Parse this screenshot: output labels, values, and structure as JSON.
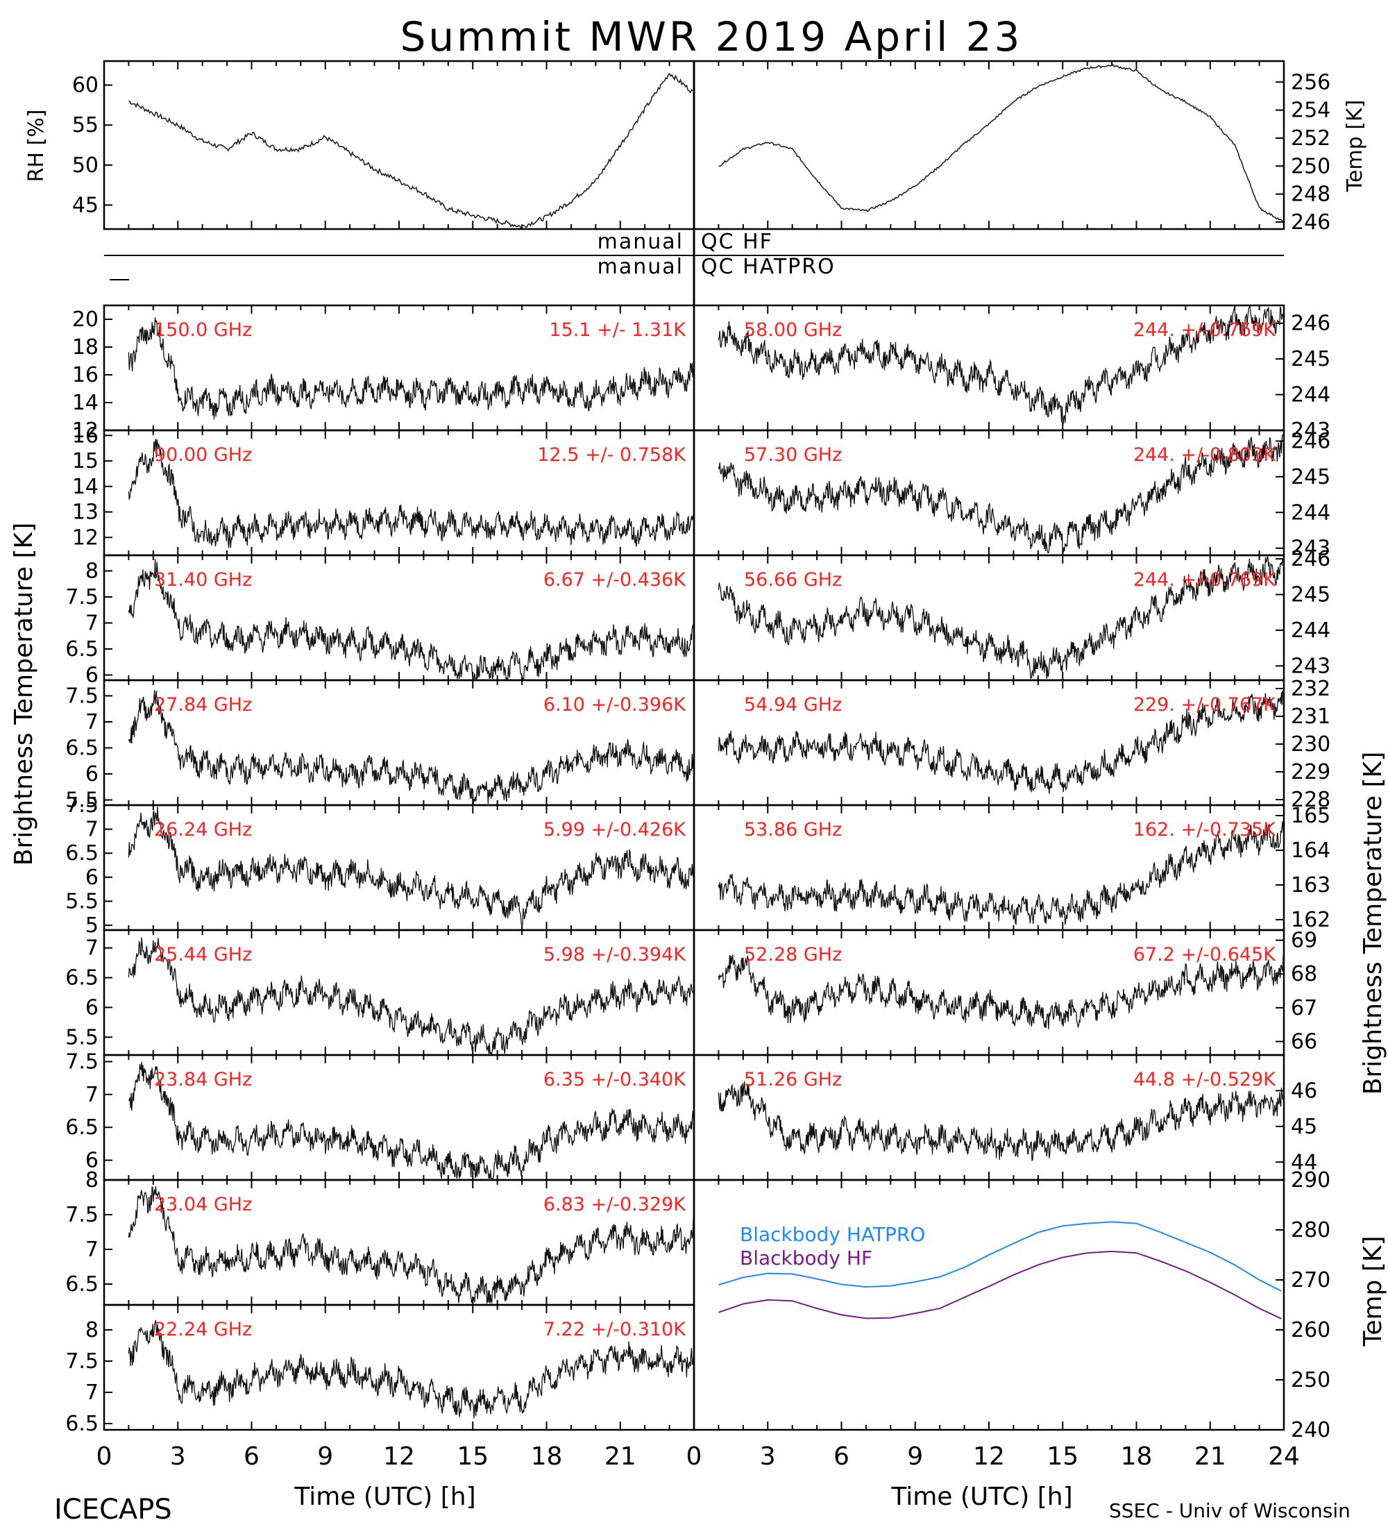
{
  "title": "Summit MWR 2019 April 23",
  "footer": {
    "left": "ICECAPS",
    "right": "SSEC - Univ of Wisconsin"
  },
  "x_axis": {
    "label": "Time (UTC) [h]",
    "ticks": [
      "0",
      "3",
      "6",
      "9",
      "12",
      "15",
      "18",
      "21",
      "24"
    ]
  },
  "left_axis_label": "Brightness Temperature [K]",
  "right_axis_label": "Brightness Temperature [K]",
  "qc_labels": {
    "left": "manual",
    "hf": "QC HF",
    "hatpro": "QC HATPRO"
  },
  "colors": {
    "freq_text": "#ff2020",
    "trace": "#111111",
    "bb_hatpro": "#1e88ff",
    "bb_hf": "#7a1a8a"
  },
  "chart_data": [
    {
      "type": "line",
      "id": "rh",
      "ylabel": "RH [%]",
      "ylim": [
        42,
        63
      ],
      "yticks": [
        45,
        50,
        55,
        60
      ],
      "x": [
        1,
        2,
        3,
        4,
        5,
        6,
        7,
        8,
        9,
        10,
        11,
        12,
        13,
        14,
        15,
        16,
        17,
        18,
        19,
        20,
        21,
        22,
        23,
        24
      ],
      "values": [
        58,
        56.5,
        55,
        53,
        52,
        54,
        52,
        52,
        53.5,
        51.5,
        49.5,
        48,
        46.5,
        44.5,
        43.7,
        43,
        42.3,
        43.5,
        45.5,
        48,
        52.5,
        57,
        61.5,
        59
      ]
    },
    {
      "type": "line",
      "id": "temp",
      "ylabel": "Temp [K]",
      "ylim": [
        245.5,
        257.5
      ],
      "yticks": [
        246,
        248,
        250,
        252,
        254,
        256
      ],
      "x": [
        1,
        2,
        3,
        4,
        5,
        6,
        7,
        8,
        9,
        10,
        11,
        12,
        13,
        14,
        15,
        16,
        17,
        18,
        19,
        20,
        21,
        22,
        23,
        24
      ],
      "values": [
        250,
        251.2,
        251.7,
        251.2,
        249,
        247,
        246.8,
        247.5,
        248.6,
        250,
        251.6,
        253,
        254.6,
        255.7,
        256.4,
        257,
        257.2,
        256.8,
        255.4,
        254.6,
        253.5,
        251.5,
        247,
        246
      ]
    },
    {
      "type": "scatter",
      "side": "left",
      "freq": "150.0 GHz",
      "stat": "15.1 +/-  1.31K",
      "ylim": [
        12,
        21
      ],
      "yticks": [
        12,
        14,
        16,
        18,
        20
      ],
      "x": [
        1,
        1.5,
        2,
        2.5,
        3,
        4,
        5,
        6,
        7,
        8,
        9,
        10,
        11,
        12,
        13,
        14,
        15,
        16,
        17,
        18,
        19,
        20,
        21,
        22,
        23,
        24
      ],
      "values": [
        17,
        18.5,
        19.5,
        18,
        14.5,
        14,
        14,
        14.5,
        15,
        14.5,
        15,
        14.5,
        15,
        15,
        14.5,
        15,
        14.5,
        14.5,
        15,
        15,
        14.5,
        14.5,
        15,
        15.5,
        15.5,
        16
      ]
    },
    {
      "type": "scatter",
      "side": "left",
      "freq": "90.00 GHz",
      "stat": "12.5 +/- 0.758K",
      "ylim": [
        11.3,
        16.2
      ],
      "yticks": [
        12,
        13,
        14,
        15,
        16
      ],
      "x": [
        1,
        1.5,
        2,
        2.5,
        3,
        4,
        5,
        6,
        7,
        8,
        9,
        10,
        11,
        12,
        13,
        14,
        15,
        16,
        17,
        18,
        19,
        20,
        21,
        22,
        23,
        24
      ],
      "values": [
        13.8,
        14.8,
        15.3,
        15,
        13.2,
        12,
        12.2,
        12.3,
        12.4,
        12.5,
        12.5,
        12.5,
        12.6,
        12.7,
        12.6,
        12.5,
        12.5,
        12.4,
        12.5,
        12.4,
        12.3,
        12.3,
        12.2,
        12.3,
        12.4,
        12.6
      ]
    },
    {
      "type": "scatter",
      "side": "left",
      "freq": "31.40 GHz",
      "stat": "6.67 +/-0.436K",
      "ylim": [
        5.9,
        8.3
      ],
      "yticks": [
        6.0,
        6.5,
        7.0,
        7.5,
        8.0
      ],
      "x": [
        1,
        1.5,
        2,
        2.5,
        3,
        4,
        5,
        6,
        7,
        8,
        9,
        10,
        11,
        12,
        13,
        14,
        15,
        16,
        17,
        18,
        19,
        20,
        21,
        22,
        23,
        24
      ],
      "values": [
        7.2,
        7.8,
        8.0,
        7.6,
        7.0,
        6.8,
        6.7,
        6.7,
        6.8,
        6.8,
        6.7,
        6.6,
        6.6,
        6.5,
        6.4,
        6.2,
        6.1,
        6.1,
        6.2,
        6.3,
        6.5,
        6.6,
        6.7,
        6.7,
        6.6,
        6.7
      ]
    },
    {
      "type": "scatter",
      "side": "left",
      "freq": "27.84 GHz",
      "stat": "6.10 +/-0.396K",
      "ylim": [
        5.4,
        7.8
      ],
      "yticks": [
        5.5,
        6.0,
        6.5,
        7.0,
        7.5
      ],
      "x": [
        1,
        1.5,
        2,
        2.5,
        3,
        4,
        5,
        6,
        7,
        8,
        9,
        10,
        11,
        12,
        13,
        14,
        15,
        16,
        17,
        18,
        19,
        20,
        21,
        22,
        23,
        24
      ],
      "values": [
        6.8,
        7.2,
        7.4,
        7.0,
        6.4,
        6.2,
        6.1,
        6.1,
        6.2,
        6.1,
        6.1,
        6.0,
        6.1,
        6.0,
        6.0,
        5.8,
        5.7,
        5.7,
        5.8,
        6.0,
        6.2,
        6.3,
        6.4,
        6.3,
        6.2,
        6.1
      ]
    },
    {
      "type": "scatter",
      "side": "left",
      "freq": "26.24 GHz",
      "stat": "5.99 +/-0.426K",
      "ylim": [
        4.9,
        7.5
      ],
      "yticks": [
        5.0,
        5.5,
        6.0,
        6.5,
        7.0,
        7.5
      ],
      "x": [
        1,
        1.5,
        2,
        2.5,
        3,
        4,
        5,
        6,
        7,
        8,
        9,
        10,
        11,
        12,
        13,
        14,
        15,
        16,
        17,
        18,
        19,
        20,
        21,
        22,
        23,
        24
      ],
      "values": [
        6.6,
        7.1,
        7.2,
        7.0,
        6.2,
        6.0,
        6.1,
        6.1,
        6.2,
        6.2,
        6.0,
        6.1,
        6.0,
        5.8,
        5.8,
        5.6,
        5.6,
        5.5,
        5.3,
        5.7,
        5.9,
        6.2,
        6.3,
        6.2,
        6.1,
        6.0
      ]
    },
    {
      "type": "scatter",
      "side": "left",
      "freq": "25.44 GHz",
      "stat": "5.98 +/-0.394K",
      "ylim": [
        5.2,
        7.3
      ],
      "yticks": [
        5.5,
        6.0,
        6.5,
        7.0
      ],
      "x": [
        1,
        1.5,
        2,
        2.5,
        3,
        4,
        5,
        6,
        7,
        8,
        9,
        10,
        11,
        12,
        13,
        14,
        15,
        16,
        17,
        18,
        19,
        20,
        21,
        22,
        23,
        24
      ],
      "values": [
        6.6,
        6.9,
        7.0,
        6.8,
        6.3,
        6.0,
        6.0,
        6.1,
        6.2,
        6.3,
        6.2,
        6.1,
        6.0,
        5.8,
        5.7,
        5.6,
        5.5,
        5.4,
        5.6,
        5.9,
        6.0,
        6.1,
        6.2,
        6.2,
        6.3,
        6.2
      ]
    },
    {
      "type": "scatter",
      "side": "left",
      "freq": "23.84 GHz",
      "stat": "6.35 +/-0.340K",
      "ylim": [
        5.7,
        7.6
      ],
      "yticks": [
        6.0,
        6.5,
        7.0,
        7.5
      ],
      "x": [
        1,
        1.5,
        2,
        2.5,
        3,
        4,
        5,
        6,
        7,
        8,
        9,
        10,
        11,
        12,
        13,
        14,
        15,
        16,
        17,
        18,
        19,
        20,
        21,
        22,
        23,
        24
      ],
      "values": [
        6.9,
        7.3,
        7.3,
        7.0,
        6.4,
        6.3,
        6.3,
        6.3,
        6.4,
        6.4,
        6.3,
        6.3,
        6.2,
        6.1,
        6.1,
        5.9,
        5.9,
        5.9,
        6.0,
        6.3,
        6.4,
        6.5,
        6.6,
        6.5,
        6.5,
        6.5
      ]
    },
    {
      "type": "scatter",
      "side": "left",
      "freq": "23.04 GHz",
      "stat": "6.83 +/-0.329K",
      "ylim": [
        6.2,
        8.0
      ],
      "yticks": [
        6.5,
        7.0,
        7.5,
        8.0
      ],
      "x": [
        1,
        1.5,
        2,
        2.5,
        3,
        4,
        5,
        6,
        7,
        8,
        9,
        10,
        11,
        12,
        13,
        14,
        15,
        16,
        17,
        18,
        19,
        20,
        21,
        22,
        23,
        24
      ],
      "values": [
        7.3,
        7.7,
        7.8,
        7.5,
        6.9,
        6.8,
        6.8,
        6.9,
        6.9,
        7.0,
        6.9,
        6.8,
        6.8,
        6.8,
        6.7,
        6.5,
        6.4,
        6.4,
        6.5,
        6.8,
        7.0,
        7.1,
        7.2,
        7.1,
        7.1,
        7.2
      ]
    },
    {
      "type": "scatter",
      "side": "left",
      "freq": "22.24 GHz",
      "stat": "7.22 +/-0.310K",
      "ylim": [
        6.4,
        8.4
      ],
      "yticks": [
        6.5,
        7.0,
        7.5,
        8.0
      ],
      "x": [
        1,
        1.5,
        2,
        2.5,
        3,
        4,
        5,
        6,
        7,
        8,
        9,
        10,
        11,
        12,
        13,
        14,
        15,
        16,
        17,
        18,
        19,
        20,
        21,
        22,
        23,
        24
      ],
      "values": [
        7.6,
        7.9,
        8.0,
        7.7,
        7.1,
        7.0,
        7.1,
        7.2,
        7.3,
        7.4,
        7.3,
        7.3,
        7.2,
        7.2,
        7.0,
        6.9,
        6.8,
        6.9,
        6.9,
        7.2,
        7.4,
        7.5,
        7.6,
        7.5,
        7.5,
        7.5
      ]
    },
    {
      "type": "scatter",
      "side": "right",
      "freq": "58.00 GHz",
      "stat": "244. +/-0.769K",
      "ylim": [
        243,
        246.5
      ],
      "yticks": [
        243,
        244,
        245,
        246
      ],
      "x": [
        1,
        2,
        3,
        4,
        5,
        6,
        7,
        8,
        9,
        10,
        11,
        12,
        13,
        14,
        15,
        16,
        17,
        18,
        19,
        20,
        21,
        22,
        23,
        24
      ],
      "values": [
        245.8,
        245.4,
        245.1,
        244.8,
        244.9,
        245.0,
        245.2,
        245.1,
        245.0,
        244.7,
        244.5,
        244.5,
        244.3,
        243.8,
        243.6,
        244.1,
        244.4,
        244.6,
        245.0,
        245.5,
        245.8,
        246.0,
        246.1,
        246.2
      ]
    },
    {
      "type": "scatter",
      "side": "right",
      "freq": "57.30 GHz",
      "stat": "244. +/-0.803K",
      "ylim": [
        242.8,
        246.3
      ],
      "yticks": [
        243,
        244,
        245,
        246
      ],
      "x": [
        1,
        2,
        3,
        4,
        5,
        6,
        7,
        8,
        9,
        10,
        11,
        12,
        13,
        14,
        15,
        16,
        17,
        18,
        19,
        20,
        21,
        22,
        23,
        24
      ],
      "values": [
        245.4,
        244.8,
        244.5,
        244.3,
        244.4,
        244.5,
        244.6,
        244.6,
        244.5,
        244.3,
        244.0,
        243.8,
        243.6,
        243.3,
        243.3,
        243.5,
        243.8,
        244.2,
        244.6,
        245.1,
        245.4,
        245.6,
        245.7,
        245.8
      ]
    },
    {
      "type": "scatter",
      "side": "right",
      "freq": "56.66 GHz",
      "stat": "244. +/-0.769K",
      "ylim": [
        242.6,
        246.1
      ],
      "yticks": [
        243,
        244,
        245,
        246
      ],
      "x": [
        1,
        2,
        3,
        4,
        5,
        6,
        7,
        8,
        9,
        10,
        11,
        12,
        13,
        14,
        15,
        16,
        17,
        18,
        19,
        20,
        21,
        22,
        23,
        24
      ],
      "values": [
        245.2,
        244.5,
        244.2,
        244.0,
        244.1,
        244.3,
        244.5,
        244.4,
        244.3,
        244.0,
        243.8,
        243.5,
        243.4,
        243.0,
        243.2,
        243.5,
        243.9,
        244.3,
        244.7,
        245.1,
        245.4,
        245.5,
        245.6,
        245.7
      ]
    },
    {
      "type": "scatter",
      "side": "right",
      "freq": "54.94 GHz",
      "stat": "229. +/-0.767K",
      "ylim": [
        227.8,
        232.3
      ],
      "yticks": [
        228,
        229,
        230,
        231,
        232
      ],
      "x": [
        1,
        2,
        3,
        4,
        5,
        6,
        7,
        8,
        9,
        10,
        11,
        12,
        13,
        14,
        15,
        16,
        17,
        18,
        19,
        20,
        21,
        22,
        23,
        24
      ],
      "values": [
        230.0,
        229.8,
        229.8,
        229.9,
        229.9,
        229.9,
        229.9,
        229.8,
        229.7,
        229.4,
        229.2,
        229.0,
        228.9,
        228.7,
        228.8,
        229.0,
        229.3,
        229.7,
        230.2,
        230.7,
        231.0,
        231.2,
        231.4,
        231.5
      ]
    },
    {
      "type": "scatter",
      "side": "right",
      "freq": "53.86 GHz",
      "stat": "162. +/-0.735K",
      "ylim": [
        161.7,
        165.3
      ],
      "yticks": [
        162,
        163,
        164,
        165
      ],
      "x": [
        1,
        2,
        3,
        4,
        5,
        6,
        7,
        8,
        9,
        10,
        11,
        12,
        13,
        14,
        15,
        16,
        17,
        18,
        19,
        20,
        21,
        22,
        23,
        24
      ],
      "values": [
        163.0,
        162.8,
        162.6,
        162.6,
        162.7,
        162.7,
        162.7,
        162.6,
        162.6,
        162.5,
        162.4,
        162.4,
        162.3,
        162.3,
        162.3,
        162.4,
        162.6,
        162.9,
        163.3,
        163.7,
        164.0,
        164.2,
        164.3,
        164.4
      ]
    },
    {
      "type": "scatter",
      "side": "right",
      "freq": "52.28 GHz",
      "stat": "67.2 +/-0.645K",
      "ylim": [
        65.6,
        69.3
      ],
      "yticks": [
        66,
        67,
        68,
        69
      ],
      "x": [
        1,
        2,
        3,
        4,
        5,
        6,
        7,
        8,
        9,
        10,
        11,
        12,
        13,
        14,
        15,
        16,
        17,
        18,
        19,
        20,
        21,
        22,
        23,
        24
      ],
      "values": [
        68.0,
        68.3,
        67.3,
        66.9,
        67.2,
        67.5,
        67.6,
        67.4,
        67.3,
        67.1,
        67.0,
        67.1,
        66.9,
        66.8,
        66.8,
        66.9,
        67.1,
        67.3,
        67.6,
        67.8,
        67.9,
        68.0,
        68.0,
        68.1
      ]
    },
    {
      "type": "scatter",
      "side": "right",
      "freq": "51.26 GHz",
      "stat": "44.8 +/-0.529K",
      "ylim": [
        43.5,
        47.0
      ],
      "yticks": [
        44,
        45,
        46
      ],
      "x": [
        1,
        2,
        3,
        4,
        5,
        6,
        7,
        8,
        9,
        10,
        11,
        12,
        13,
        14,
        15,
        16,
        17,
        18,
        19,
        20,
        21,
        22,
        23,
        24
      ],
      "values": [
        45.8,
        46.0,
        45.2,
        44.6,
        44.7,
        44.8,
        44.8,
        44.7,
        44.6,
        44.6,
        44.6,
        44.5,
        44.5,
        44.5,
        44.5,
        44.6,
        44.7,
        44.9,
        45.2,
        45.4,
        45.5,
        45.6,
        45.6,
        45.7
      ]
    },
    {
      "type": "line",
      "id": "blackbody",
      "ylabel": "Temp [K]",
      "ylim": [
        240,
        290
      ],
      "yticks": [
        240,
        250,
        260,
        270,
        280,
        290
      ],
      "x": [
        1,
        2,
        3,
        4,
        5,
        6,
        7,
        8,
        9,
        10,
        11,
        12,
        13,
        14,
        15,
        16,
        17,
        18,
        19,
        20,
        21,
        22,
        23,
        24
      ],
      "series": [
        {
          "name": "Blackbody HATPRO",
          "values": [
            269,
            270.5,
            271.3,
            271.2,
            270.2,
            269.1,
            268.6,
            268.8,
            269.6,
            270.6,
            272.5,
            275,
            277.3,
            279.5,
            280.8,
            281.3,
            281.6,
            281.3,
            279.5,
            277.5,
            275.5,
            273,
            270,
            267.5
          ]
        },
        {
          "name": "Blackbody HF",
          "values": [
            263.5,
            265.2,
            266,
            265.8,
            264.3,
            263,
            262.3,
            262.4,
            263.3,
            264.3,
            266.5,
            268.7,
            271,
            273,
            274.5,
            275.4,
            275.7,
            275.4,
            273.7,
            271.8,
            269.5,
            267,
            264.3,
            262
          ]
        }
      ]
    }
  ]
}
